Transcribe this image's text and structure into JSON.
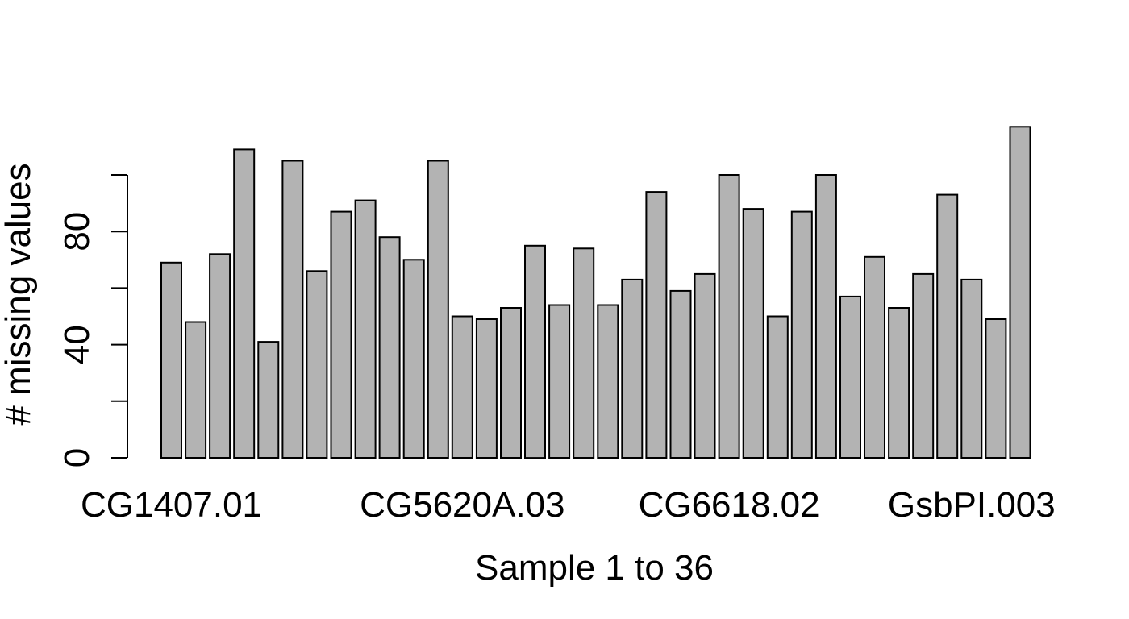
{
  "chart_data": {
    "type": "bar",
    "title": "",
    "xlabel": "Sample 1 to 36",
    "ylabel": "# missing values",
    "ylim": [
      0,
      120
    ],
    "yticks": [
      0,
      20,
      40,
      60,
      80,
      100
    ],
    "ytick_labels_shown": [
      "0",
      "40",
      "80"
    ],
    "category_labels": [
      {
        "index": 1,
        "label": "CG1407.01"
      },
      {
        "index": 13,
        "label": "CG5620A.03"
      },
      {
        "index": 24,
        "label": "CG6618.02"
      },
      {
        "index": 34,
        "label": "GsbPI.003"
      }
    ],
    "values": [
      69,
      48,
      72,
      109,
      41,
      105,
      66,
      87,
      91,
      78,
      70,
      105,
      50,
      49,
      53,
      75,
      54,
      74,
      54,
      63,
      94,
      59,
      65,
      100,
      88,
      50,
      87,
      100,
      57,
      71,
      53,
      65,
      93,
      63,
      49,
      117
    ],
    "bar_color": "#b3b3b3",
    "border_color": "#000000",
    "grid": false,
    "legend": "none"
  }
}
